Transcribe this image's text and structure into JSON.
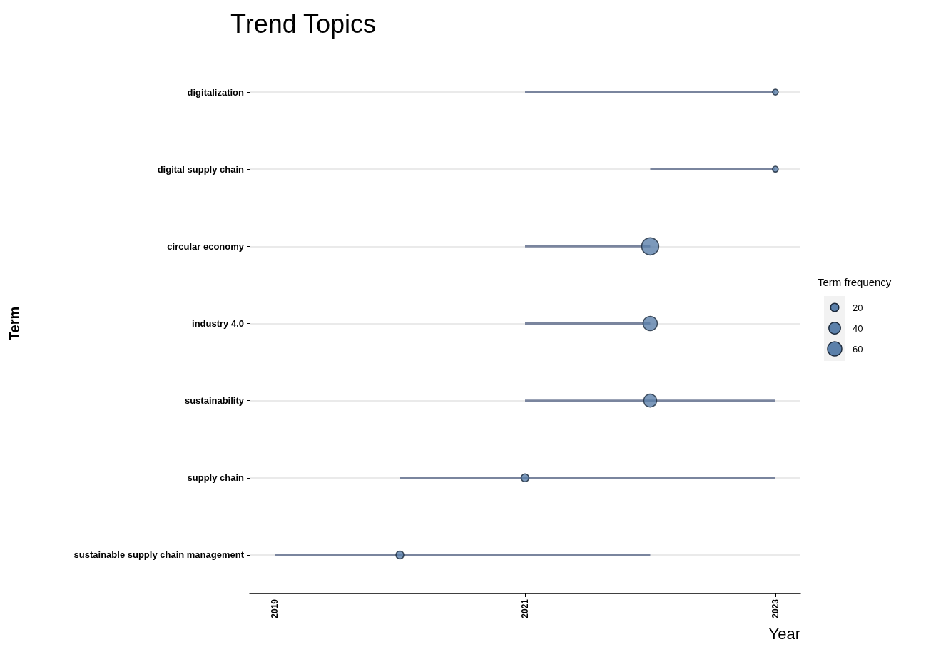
{
  "chart_data": {
    "type": "bubble",
    "title": "Trend Topics",
    "xlabel": "Year",
    "ylabel": "Term",
    "legend_title": "Term frequency",
    "orientation": "horizontal",
    "categories": [
      "digitalization",
      "digital supply chain",
      "circular economy",
      "industry 4.0",
      "sustainability",
      "supply chain",
      "sustainable supply chain management"
    ],
    "values": [
      2023,
      2023,
      2022,
      2022,
      2022,
      2021,
      2020
    ],
    "errors": [
      [
        2021,
        2023
      ],
      [
        2022,
        2023
      ],
      [
        2021,
        2022
      ],
      [
        2021,
        2022
      ],
      [
        2021,
        2023
      ],
      [
        2020,
        2023
      ],
      [
        2019,
        2022
      ]
    ],
    "sizes": [
      10,
      10,
      86,
      60,
      49,
      18,
      18
    ],
    "size_legend": [
      20,
      40,
      60
    ],
    "color": "#5b80aa",
    "xlim": [
      2018.8,
      2023.2
    ],
    "xticks": [
      2019,
      2021,
      2023
    ],
    "grid": "y"
  }
}
